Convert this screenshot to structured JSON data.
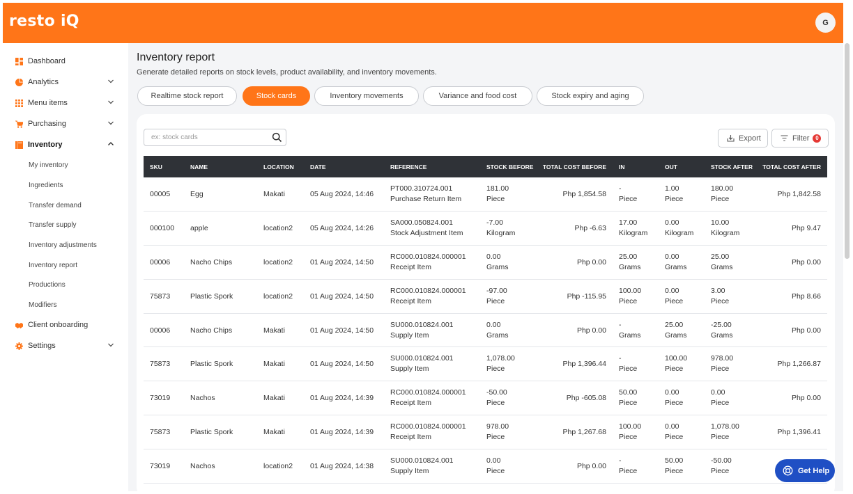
{
  "app": {
    "logo": "resto iQ",
    "avatar_initial": "G"
  },
  "sidebar": {
    "items": [
      {
        "label": "Dashboard",
        "icon": "dashboard-icon",
        "expandable": false
      },
      {
        "label": "Analytics",
        "icon": "pie-chart-icon",
        "expandable": true
      },
      {
        "label": "Menu items",
        "icon": "grid-icon",
        "expandable": true
      },
      {
        "label": "Purchasing",
        "icon": "cart-icon",
        "expandable": true
      },
      {
        "label": "Inventory",
        "icon": "inventory-icon",
        "expandable": true,
        "active": true
      },
      {
        "label": "Client onboarding",
        "icon": "handshake-icon",
        "expandable": false
      },
      {
        "label": "Settings",
        "icon": "gear-icon",
        "expandable": true
      }
    ],
    "inventory_sub": [
      "My inventory",
      "Ingredients",
      "Transfer demand",
      "Transfer supply",
      "Inventory adjustments",
      "Inventory report",
      "Productions",
      "Modifiers"
    ]
  },
  "main": {
    "title": "Inventory report",
    "subtitle": "Generate detailed reports on stock levels, product availability, and inventory movements.",
    "tabs": [
      "Realtime stock report",
      "Stock cards",
      "Inventory movements",
      "Variance and food cost",
      "Stock expiry and aging"
    ],
    "active_tab": "Stock cards",
    "search_placeholder": "ex: stock cards",
    "export_label": "Export",
    "filter_label": "Filter",
    "filter_count": "0",
    "help_label": "Get Help"
  },
  "table": {
    "headers": [
      "SKU",
      "NAME",
      "LOCATION",
      "DATE",
      "REFERENCE",
      "STOCK BEFORE",
      "TOTAL COST BEFORE",
      "IN",
      "OUT",
      "STOCK AFTER",
      "TOTAL COST AFTER"
    ],
    "rows": [
      {
        "sku": "00005",
        "name": "Egg",
        "location": "Makati",
        "date": "05 Aug 2024, 14:46",
        "ref": "PT000.310724.001",
        "ref_type": "Purchase Return Item",
        "stock_before": "181.00",
        "unit_before": "Piece",
        "cost_before": "Php 1,854.58",
        "in": "-",
        "unit_in": "Piece",
        "out": "1.00",
        "unit_out": "Piece",
        "stock_after": "180.00",
        "unit_after": "Piece",
        "cost_after": "Php 1,842.58"
      },
      {
        "sku": "000100",
        "name": "apple",
        "location": "location2",
        "date": "05 Aug 2024, 14:26",
        "ref": "SA000.050824.001",
        "ref_type": "Stock Adjustment Item",
        "stock_before": "-7.00",
        "unit_before": "Kilogram",
        "cost_before": "Php -6.63",
        "in": "17.00",
        "unit_in": "Kilogram",
        "out": "0.00",
        "unit_out": "Kilogram",
        "stock_after": "10.00",
        "unit_after": "Kilogram",
        "cost_after": "Php 9.47"
      },
      {
        "sku": "00006",
        "name": "Nacho Chips",
        "location": "location2",
        "date": "01 Aug 2024, 14:50",
        "ref": "RC000.010824.000001",
        "ref_type": "Receipt Item",
        "stock_before": "0.00",
        "unit_before": "Grams",
        "cost_before": "Php 0.00",
        "in": "25.00",
        "unit_in": "Grams",
        "out": "0.00",
        "unit_out": "Grams",
        "stock_after": "25.00",
        "unit_after": "Grams",
        "cost_after": "Php 0.00"
      },
      {
        "sku": "75873",
        "name": "Plastic Spork",
        "location": "location2",
        "date": "01 Aug 2024, 14:50",
        "ref": "RC000.010824.000001",
        "ref_type": "Receipt Item",
        "stock_before": "-97.00",
        "unit_before": "Piece",
        "cost_before": "Php -115.95",
        "in": "100.00",
        "unit_in": "Piece",
        "out": "0.00",
        "unit_out": "Piece",
        "stock_after": "3.00",
        "unit_after": "Piece",
        "cost_after": "Php 8.66"
      },
      {
        "sku": "00006",
        "name": "Nacho Chips",
        "location": "Makati",
        "date": "01 Aug 2024, 14:50",
        "ref": "SU000.010824.001",
        "ref_type": "Supply Item",
        "stock_before": "0.00",
        "unit_before": "Grams",
        "cost_before": "Php 0.00",
        "in": "-",
        "unit_in": "Grams",
        "out": "25.00",
        "unit_out": "Grams",
        "stock_after": "-25.00",
        "unit_after": "Grams",
        "cost_after": "Php 0.00"
      },
      {
        "sku": "75873",
        "name": "Plastic Spork",
        "location": "Makati",
        "date": "01 Aug 2024, 14:50",
        "ref": "SU000.010824.001",
        "ref_type": "Supply Item",
        "stock_before": "1,078.00",
        "unit_before": "Piece",
        "cost_before": "Php 1,396.44",
        "in": "-",
        "unit_in": "Piece",
        "out": "100.00",
        "unit_out": "Piece",
        "stock_after": "978.00",
        "unit_after": "Piece",
        "cost_after": "Php 1,266.87"
      },
      {
        "sku": "73019",
        "name": "Nachos",
        "location": "Makati",
        "date": "01 Aug 2024, 14:39",
        "ref": "RC000.010824.000001",
        "ref_type": "Receipt Item",
        "stock_before": "-50.00",
        "unit_before": "Piece",
        "cost_before": "Php -605.08",
        "in": "50.00",
        "unit_in": "Piece",
        "out": "0.00",
        "unit_out": "Piece",
        "stock_after": "0.00",
        "unit_after": "Piece",
        "cost_after": "Php 0.00"
      },
      {
        "sku": "75873",
        "name": "Plastic Spork",
        "location": "Makati",
        "date": "01 Aug 2024, 14:39",
        "ref": "RC000.010824.000001",
        "ref_type": "Receipt Item",
        "stock_before": "978.00",
        "unit_before": "Piece",
        "cost_before": "Php 1,267.68",
        "in": "100.00",
        "unit_in": "Piece",
        "out": "0.00",
        "unit_out": "Piece",
        "stock_after": "1,078.00",
        "unit_after": "Piece",
        "cost_after": "Php 1,396.41"
      },
      {
        "sku": "73019",
        "name": "Nachos",
        "location": "location2",
        "date": "01 Aug 2024, 14:38",
        "ref": "SU000.010824.001",
        "ref_type": "Supply Item",
        "stock_before": "0.00",
        "unit_before": "Piece",
        "cost_before": "Php 0.00",
        "in": "-",
        "unit_in": "Piece",
        "out": "50.00",
        "unit_out": "Piece",
        "stock_after": "-50.00",
        "unit_after": "Piece",
        "cost_after": ""
      }
    ]
  },
  "colors": {
    "brand": "#ff7518",
    "table_header": "#2f3237",
    "help_button": "#1f4fc4",
    "badge": "#e53935"
  }
}
